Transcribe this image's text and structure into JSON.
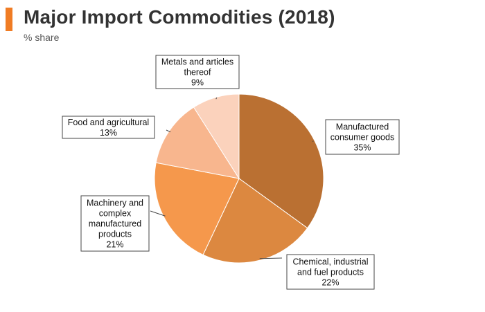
{
  "header": {
    "title": "Major Import Commodities (2018)",
    "subtitle": "% share",
    "accent_color": "#f07c24"
  },
  "chart_data": {
    "type": "pie",
    "title": "Major Import Commodities (2018)",
    "subtitle": "% share",
    "unit": "%",
    "start": "12 o'clock",
    "direction": "clockwise",
    "slices": [
      {
        "label_lines": [
          "Manufactured",
          "consumer goods"
        ],
        "value": 35,
        "value_label": "35%",
        "color": "#ba7032"
      },
      {
        "label_lines": [
          "Chemical, industrial",
          "and fuel products"
        ],
        "value": 22,
        "value_label": "22%",
        "color": "#dc8840"
      },
      {
        "label_lines": [
          "Machinery and",
          "complex",
          "manufactured",
          "products"
        ],
        "value": 21,
        "value_label": "21%",
        "color": "#f5984c"
      },
      {
        "label_lines": [
          "Food and agricultural"
        ],
        "value": 13,
        "value_label": "13%",
        "color": "#f8b68e"
      },
      {
        "label_lines": [
          "Metals and articles",
          "thereof"
        ],
        "value": 9,
        "value_label": "9%",
        "color": "#fbd2bc"
      }
    ]
  }
}
